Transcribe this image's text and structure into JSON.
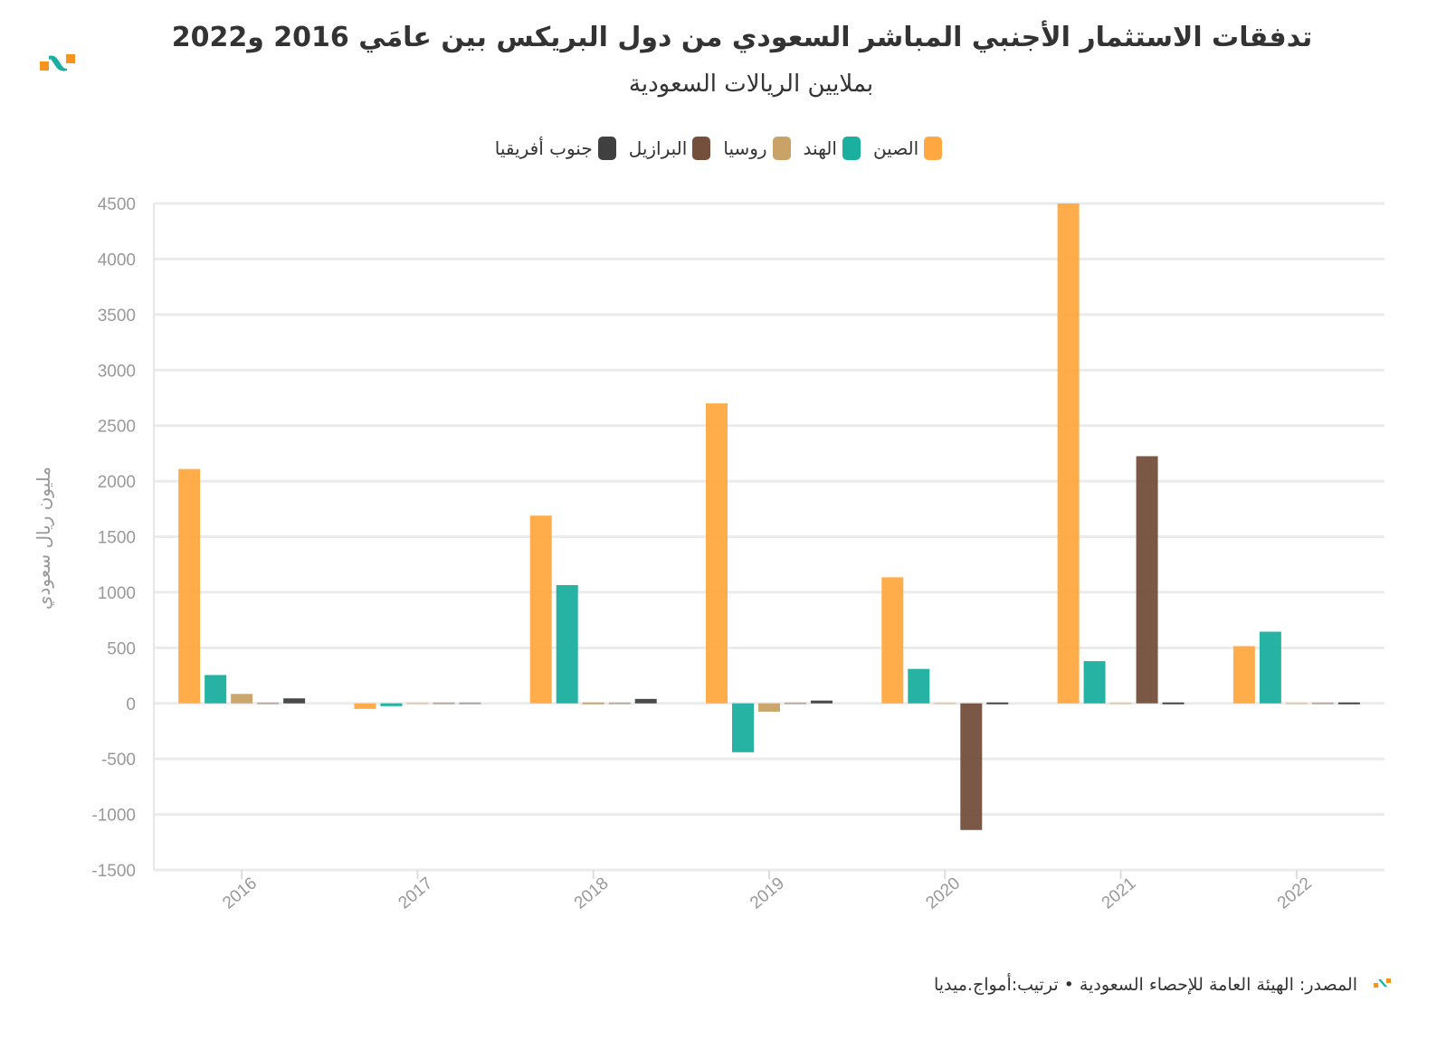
{
  "chart_data": {
    "type": "bar",
    "title": "تدفقات الاستثمار الأجنبي المباشر السعودي من دول البريكس بين عامَي 2016 و2022",
    "subtitle": "بملايين الريالات السعودية",
    "ylabel": "مليون ريال سعودي",
    "xlabel": "",
    "ylim": [
      -1500,
      4500
    ],
    "yticks": [
      4500,
      4000,
      3500,
      3000,
      2500,
      2000,
      1500,
      1000,
      500,
      0,
      -500,
      -1000,
      -1500
    ],
    "categories": [
      "2016",
      "2017",
      "2018",
      "2019",
      "2020",
      "2021",
      "2022"
    ],
    "grid": true,
    "legend_position": "top-center",
    "series": [
      {
        "name": "الصين",
        "color": "#FFA841",
        "values": [
          2110,
          -50,
          1690,
          2700,
          1135,
          4500,
          515
        ]
      },
      {
        "name": "الهند",
        "color": "#1AAF9E",
        "values": [
          255,
          -25,
          1065,
          -440,
          310,
          380,
          645
        ]
      },
      {
        "name": "روسيا",
        "color": "#C8A266",
        "values": [
          85,
          -5,
          -10,
          -75,
          0,
          -5,
          0
        ]
      },
      {
        "name": "البرازيل",
        "color": "#744F3C",
        "values": [
          0,
          0,
          5,
          5,
          -1140,
          2225,
          -5
        ]
      },
      {
        "name": "جنوب أفريقيا",
        "color": "#404040",
        "values": [
          45,
          5,
          40,
          25,
          15,
          15,
          15
        ]
      }
    ]
  },
  "footer": {
    "source": "المصدر: الهيئة العامة للإحصاء السعودية • ترتيب:أمواج.ميديا"
  }
}
